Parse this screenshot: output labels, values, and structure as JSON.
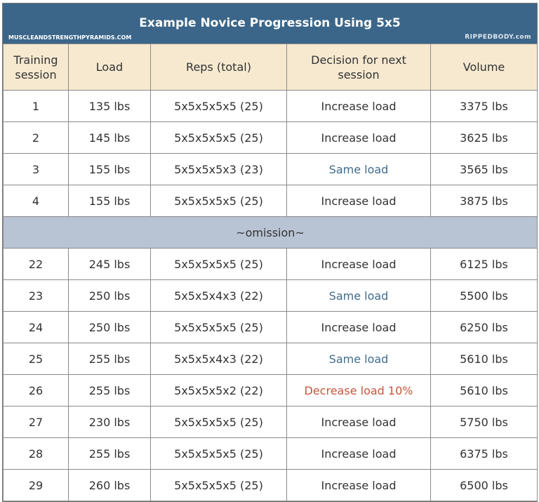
{
  "title": "Example Novice Progression Using 5x5",
  "site": "MUSCLEANDSTRENGTHPYRAMIDS.COM",
  "logo": "RIPPEDBODY.com",
  "columns": [
    "Training session",
    "Load",
    "Reps (total)",
    "Decision for next session",
    "Volume"
  ],
  "colors": {
    "title_bar": "#3b6689",
    "header": "#f6e9d0",
    "omission": "#b8c3d3",
    "same_load": "#3e6b8c",
    "decrease_load": "#c4573c"
  },
  "rows_a": [
    [
      "1",
      "135 lbs",
      "5x5x5x5x5 (25)",
      "Increase load",
      "3375 lbs"
    ],
    [
      "2",
      "145 lbs",
      "5x5x5x5x5 (25)",
      "Increase load",
      "3625 lbs"
    ],
    [
      "3",
      "155 lbs",
      "5x5x5x5x3 (23)",
      "Same load",
      "3565 lbs"
    ],
    [
      "4",
      "155 lbs",
      "5x5x5x5x5 (25)",
      "Increase load",
      "3875 lbs"
    ]
  ],
  "omission": "~omission~",
  "rows_b": [
    [
      "22",
      "245 lbs",
      "5x5x5x5x5 (25)",
      "Increase load",
      "6125 lbs"
    ],
    [
      "23",
      "250 lbs",
      "5x5x5x4x3 (22)",
      "Same load",
      "5500 lbs"
    ],
    [
      "24",
      "250 lbs",
      "5x5x5x5x5 (25)",
      "Increase load",
      "6250 lbs"
    ],
    [
      "25",
      "255 lbs",
      "5x5x5x4x3 (22)",
      "Same load",
      "5610 lbs"
    ],
    [
      "26",
      "255 lbs",
      "5x5x5x5x2 (22)",
      "Decrease load 10%",
      "5610 lbs"
    ],
    [
      "27",
      "230 lbs",
      "5x5x5x5x5 (25)",
      "Increase load",
      "5750 lbs"
    ],
    [
      "28",
      "255 lbs",
      "5x5x5x5x5 (25)",
      "Increase load",
      "6375 lbs"
    ],
    [
      "29",
      "260 lbs",
      "5x5x5x5x5 (25)",
      "Increase load",
      "6500 lbs"
    ]
  ]
}
